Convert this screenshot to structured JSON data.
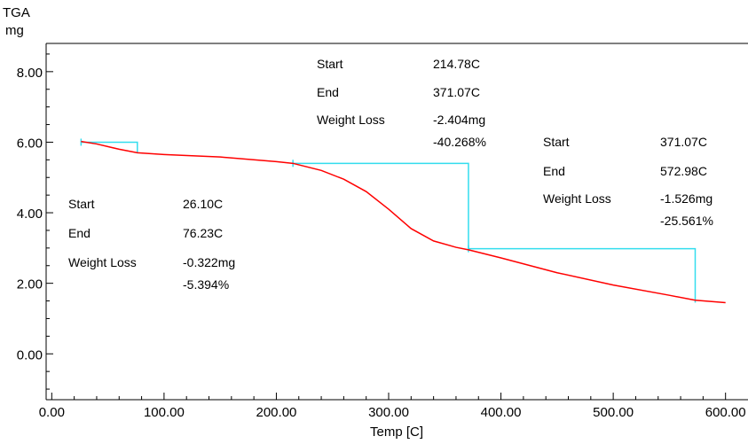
{
  "chart_data": {
    "type": "line",
    "ylabel_top": "TGA",
    "yunit": "mg",
    "xlabel": "Temp  [C]",
    "xlim": [
      -5,
      620
    ],
    "ylim": [
      -1.3,
      8.8
    ],
    "xticks": [
      0,
      100,
      200,
      300,
      400,
      500,
      600
    ],
    "xtick_labels": [
      "0.00",
      "100.00",
      "200.00",
      "300.00",
      "400.00",
      "500.00",
      "600.00"
    ],
    "yticks": [
      0,
      2,
      4,
      6,
      8
    ],
    "ytick_labels": [
      "0.00",
      "2.00",
      "4.00",
      "6.00",
      "8.00"
    ],
    "series": [
      {
        "color": "#ff0000",
        "x": [
          26.1,
          40,
          60,
          76.23,
          100,
          150,
          200,
          214.78,
          240,
          260,
          280,
          300,
          320,
          340,
          360,
          371.07,
          400,
          450,
          500,
          550,
          572.98,
          600
        ],
        "y": [
          6.02,
          5.95,
          5.8,
          5.7,
          5.65,
          5.58,
          5.45,
          5.4,
          5.2,
          4.95,
          4.6,
          4.1,
          3.55,
          3.2,
          3.02,
          2.95,
          2.72,
          2.3,
          1.95,
          1.66,
          1.52,
          1.45
        ]
      }
    ],
    "step_color": "#33ddee",
    "steps": [
      {
        "start_x": 26.1,
        "end_x": 76.23,
        "top_y": 6.0,
        "bottom_y": 5.7
      },
      {
        "start_x": 214.78,
        "end_x": 371.07,
        "top_y": 5.4,
        "bottom_y": 2.98
      },
      {
        "start_x": 371.07,
        "end_x": 572.98,
        "top_y": 2.98,
        "bottom_y": 1.45
      }
    ],
    "annotations": [
      {
        "start_label": "Start",
        "start": "26.10C",
        "end_label": "End",
        "end": "76.23C",
        "loss_label": "Weight Loss",
        "loss_mg": "-0.322mg",
        "loss_pct": "-5.394%"
      },
      {
        "start_label": "Start",
        "start": "214.78C",
        "end_label": "End",
        "end": "371.07C",
        "loss_label": "Weight Loss",
        "loss_mg": "-2.404mg",
        "loss_pct": "-40.268%"
      },
      {
        "start_label": "Start",
        "start": "371.07C",
        "end_label": "End",
        "end": "572.98C",
        "loss_label": "Weight Loss",
        "loss_mg": "-1.526mg",
        "loss_pct": "-25.561%"
      }
    ]
  }
}
